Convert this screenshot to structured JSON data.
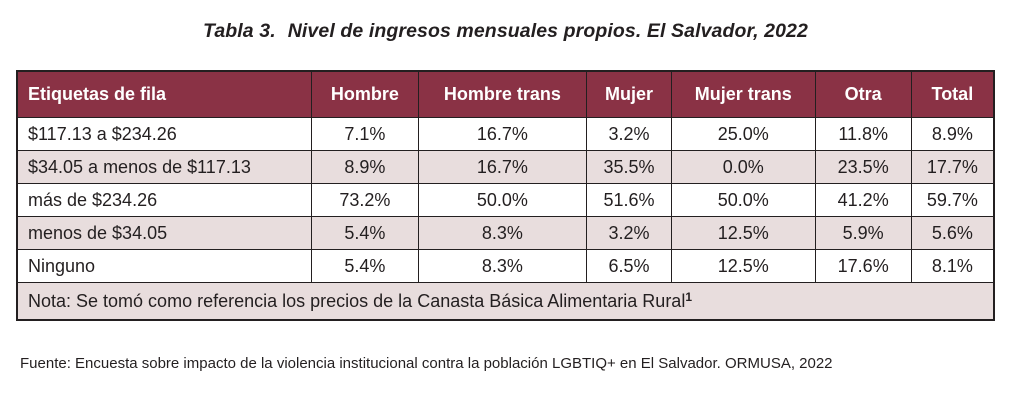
{
  "caption": {
    "label": "Tabla 3.",
    "title": "Nivel de ingresos mensuales propios. El Salvador, 2022"
  },
  "table": {
    "headers": [
      "Etiquetas de fila",
      "Hombre",
      "Hombre trans",
      "Mujer",
      "Mujer trans",
      "Otra",
      "Total"
    ],
    "rows": [
      {
        "label": "$117.13 a $234.26",
        "values": [
          "7.1%",
          "16.7%",
          "3.2%",
          "25.0%",
          "11.8%",
          "8.9%"
        ]
      },
      {
        "label": "$34.05 a menos de $117.13",
        "values": [
          "8.9%",
          "16.7%",
          "35.5%",
          "0.0%",
          "23.5%",
          "17.7%"
        ]
      },
      {
        "label": "más de $234.26",
        "values": [
          "73.2%",
          "50.0%",
          "51.6%",
          "50.0%",
          "41.2%",
          "59.7%"
        ]
      },
      {
        "label": "menos de $34.05",
        "values": [
          "5.4%",
          "8.3%",
          "3.2%",
          "12.5%",
          "5.9%",
          "5.6%"
        ]
      },
      {
        "label": "Ninguno",
        "values": [
          "5.4%",
          "8.3%",
          "6.5%",
          "12.5%",
          "17.6%",
          "8.1%"
        ]
      }
    ],
    "note": "Nota: Se tomó como referencia los precios de la Canasta Básica Alimentaria Rural",
    "note_superscript": "1"
  },
  "source": "Fuente: Encuesta sobre impacto de la violencia institucional contra la población LGBTIQ+ en El Salvador. ORMUSA, 2022",
  "colors": {
    "header_bg": "#8a3245",
    "shade_row": "#e8dddd"
  }
}
